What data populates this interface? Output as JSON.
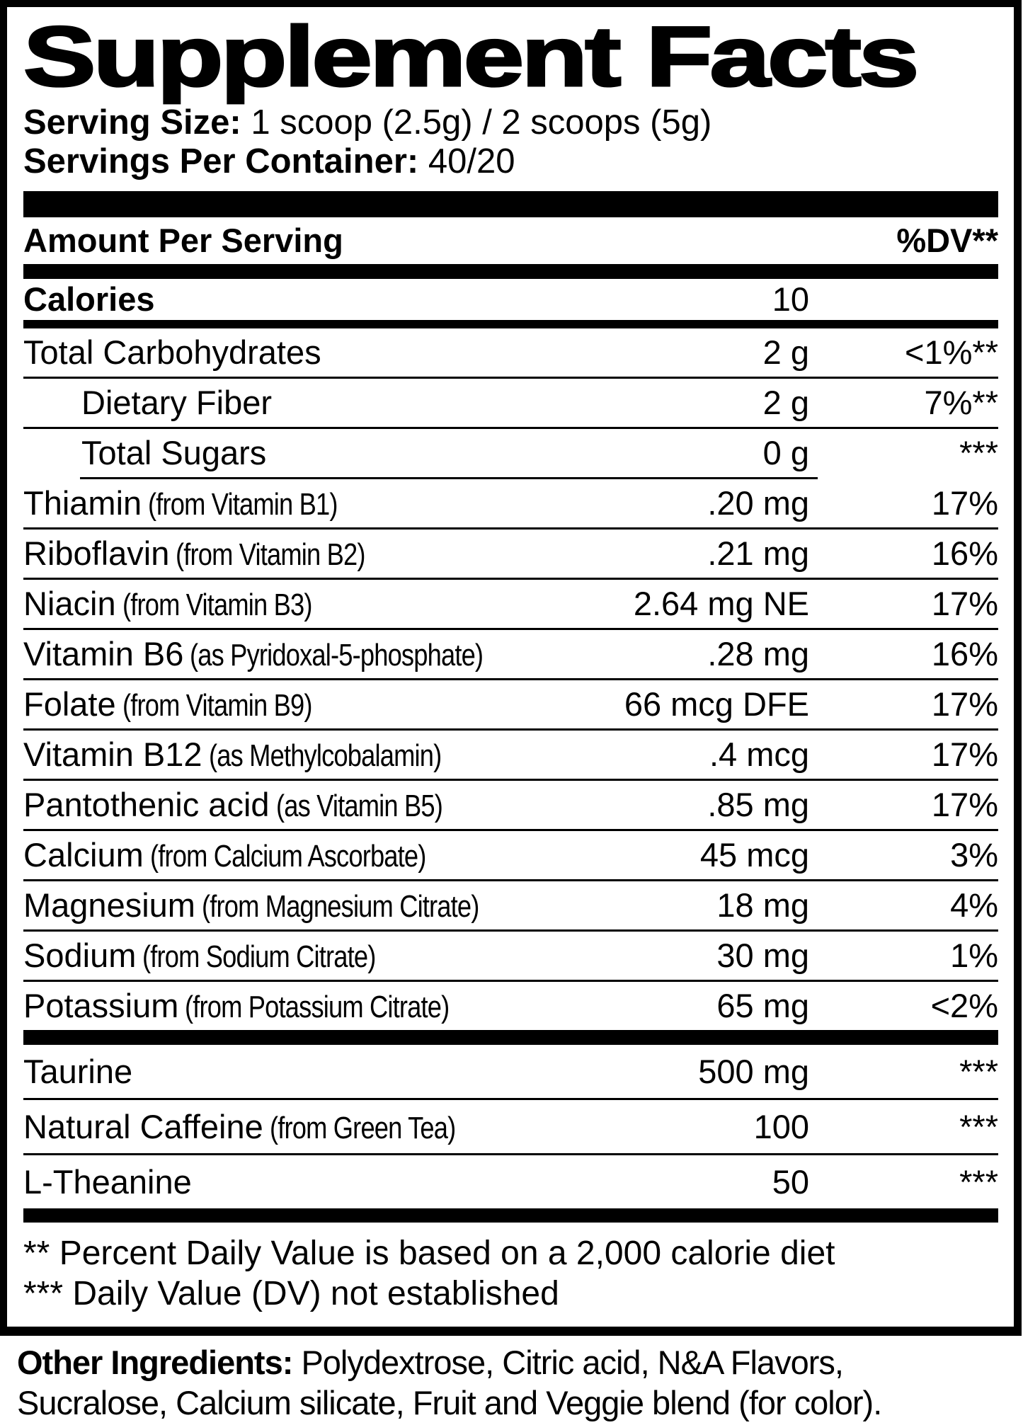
{
  "title": "Supplement Facts",
  "serving": {
    "size_label": "Serving Size:",
    "size_value": "1 scoop (2.5g) / 2 scoops (5g)",
    "per_container_label": "Servings Per Container:",
    "per_container_value": "40/20"
  },
  "header": {
    "amount_label": "Amount Per Serving",
    "dv_label": "%DV**"
  },
  "calories": {
    "label": "Calories",
    "value": "10"
  },
  "nutrients": [
    {
      "name": "Total Carbohydrates",
      "detail": "",
      "amount": "2 g",
      "dv": "<1%**",
      "indent": false,
      "sep": "full"
    },
    {
      "name": "Dietary Fiber",
      "detail": "",
      "amount": "2 g",
      "dv": "7%**",
      "indent": true,
      "sep": "full"
    },
    {
      "name": "Total Sugars",
      "detail": "",
      "amount": "0 g",
      "dv": "***",
      "indent": true,
      "sep": "ind"
    },
    {
      "name": "Thiamin",
      "detail": "(from Vitamin B1)",
      "amount": ".20 mg",
      "dv": "17%",
      "indent": false,
      "sep": "full"
    },
    {
      "name": "Riboflavin",
      "detail": "(from Vitamin B2)",
      "amount": ".21 mg",
      "dv": "16%",
      "indent": false,
      "sep": "full"
    },
    {
      "name": "Niacin",
      "detail": "(from Vitamin B3)",
      "amount": "2.64 mg NE",
      "dv": "17%",
      "indent": false,
      "sep": "full"
    },
    {
      "name": "Vitamin B6",
      "detail": "(as Pyridoxal-5-phosphate)",
      "amount": ".28 mg",
      "dv": "16%",
      "indent": false,
      "sep": "full"
    },
    {
      "name": "Folate",
      "detail": "(from Vitamin B9)",
      "amount": "66 mcg DFE",
      "dv": "17%",
      "indent": false,
      "sep": "full"
    },
    {
      "name": "Vitamin B12",
      "detail": "(as Methylcobalamin)",
      "amount": ".4 mcg",
      "dv": "17%",
      "indent": false,
      "sep": "full"
    },
    {
      "name": "Pantothenic acid",
      "detail": "(as Vitamin B5)",
      "amount": ".85 mg",
      "dv": "17%",
      "indent": false,
      "sep": "full"
    },
    {
      "name": "Calcium",
      "detail": "(from Calcium Ascorbate)",
      "amount": "45 mcg",
      "dv": "3%",
      "indent": false,
      "sep": "full"
    },
    {
      "name": "Magnesium",
      "detail": "(from Magnesium Citrate)",
      "amount": "18 mg",
      "dv": "4%",
      "indent": false,
      "sep": "full"
    },
    {
      "name": "Sodium",
      "detail": "(from Sodium Citrate)",
      "amount": "30 mg",
      "dv": "1%",
      "indent": false,
      "sep": "full"
    },
    {
      "name": "Potassium",
      "detail": "(from Potassium Citrate)",
      "amount": "65 mg",
      "dv": "<2%",
      "indent": false,
      "sep": "none"
    }
  ],
  "extras": [
    {
      "name": "Taurine",
      "detail": "",
      "amount": "500 mg",
      "dv": "***",
      "indent": false,
      "sep": "full"
    },
    {
      "name": "Natural Caffeine",
      "detail": "(from Green Tea)",
      "amount": "100",
      "dv": "***",
      "indent": false,
      "sep": "full"
    },
    {
      "name": "L-Theanine",
      "detail": "",
      "amount": "50",
      "dv": "***",
      "indent": false,
      "sep": "none"
    }
  ],
  "footnotes": [
    "** Percent Daily Value is based on a 2,000 calorie diet",
    "*** Daily Value (DV) not established"
  ],
  "other_ingredients": {
    "label": "Other Ingredients:",
    "line1_rest": "Polydextrose, Citric acid, N&A Flavors,",
    "line2": "Sucralose, Calcium silicate, Fruit and Veggie blend (for color)."
  }
}
